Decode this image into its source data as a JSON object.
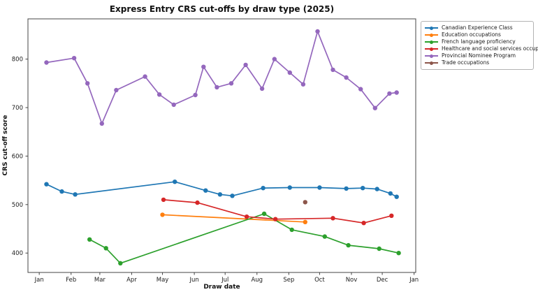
{
  "chart_data": {
    "type": "line",
    "title": "Express Entry CRS cut-offs by draw type (2025)",
    "xlabel": "Draw date",
    "ylabel": "CRS cut-off score",
    "x_tick_labels": [
      "Jan",
      "Feb",
      "Mar",
      "Apr",
      "May",
      "Jun",
      "Jul",
      "Aug",
      "Sep",
      "Oct",
      "Nov",
      "Dec",
      "Jan"
    ],
    "y_ticks": [
      400,
      500,
      600,
      700,
      800
    ],
    "ylim": [
      360,
      883
    ],
    "grid": false,
    "legend_position": "upper-right-outside",
    "frame_color": "#444444",
    "series": [
      {
        "name": "Canadian Experience Class",
        "color": "#1f77b4",
        "points": [
          [
            "2025-01-08",
            542
          ],
          [
            "2025-01-23",
            527
          ],
          [
            "2025-02-05",
            521
          ],
          [
            "2025-05-13",
            547
          ],
          [
            "2025-06-12",
            529
          ],
          [
            "2025-06-26",
            521
          ],
          [
            "2025-07-08",
            518
          ],
          [
            "2025-08-07",
            534
          ],
          [
            "2025-09-02",
            535
          ],
          [
            "2025-10-01",
            535
          ],
          [
            "2025-10-27",
            533
          ],
          [
            "2025-11-12",
            534
          ],
          [
            "2025-11-26",
            532
          ],
          [
            "2025-12-09",
            523
          ],
          [
            "2025-12-15",
            516
          ]
        ]
      },
      {
        "name": "Education occupations",
        "color": "#ff7f0e",
        "points": [
          [
            "2025-05-01",
            479
          ],
          [
            "2025-09-17",
            464
          ]
        ]
      },
      {
        "name": "French language proficiency",
        "color": "#2ca02c",
        "points": [
          [
            "2025-02-19",
            428
          ],
          [
            "2025-03-07",
            410
          ],
          [
            "2025-03-21",
            379
          ],
          [
            "2025-08-08",
            481
          ],
          [
            "2025-09-04",
            448
          ],
          [
            "2025-10-06",
            434
          ],
          [
            "2025-10-29",
            416
          ],
          [
            "2025-11-28",
            409
          ],
          [
            "2025-12-17",
            400
          ]
        ]
      },
      {
        "name": "Healthcare and social services occupations",
        "color": "#d62728",
        "points": [
          [
            "2025-05-02",
            510
          ],
          [
            "2025-06-04",
            504
          ],
          [
            "2025-07-22",
            475
          ],
          [
            "2025-08-19",
            470
          ],
          [
            "2025-10-14",
            472
          ],
          [
            "2025-11-13",
            462
          ],
          [
            "2025-12-10",
            477
          ]
        ]
      },
      {
        "name": "Provincial Nominee Program",
        "color": "#9467bd",
        "points": [
          [
            "2025-01-08",
            793
          ],
          [
            "2025-02-04",
            802
          ],
          [
            "2025-02-17",
            750
          ],
          [
            "2025-03-03",
            667
          ],
          [
            "2025-03-17",
            736
          ],
          [
            "2025-04-14",
            764
          ],
          [
            "2025-04-28",
            727
          ],
          [
            "2025-05-12",
            706
          ],
          [
            "2025-06-02",
            726
          ],
          [
            "2025-06-10",
            784
          ],
          [
            "2025-06-23",
            742
          ],
          [
            "2025-07-07",
            750
          ],
          [
            "2025-07-21",
            788
          ],
          [
            "2025-08-06",
            739
          ],
          [
            "2025-08-18",
            800
          ],
          [
            "2025-09-02",
            772
          ],
          [
            "2025-09-15",
            748
          ],
          [
            "2025-09-29",
            857
          ],
          [
            "2025-10-14",
            778
          ],
          [
            "2025-10-27",
            762
          ],
          [
            "2025-11-10",
            738
          ],
          [
            "2025-11-24",
            699
          ],
          [
            "2025-12-08",
            729
          ],
          [
            "2025-12-15",
            731
          ]
        ]
      },
      {
        "name": "Trade occupations",
        "color": "#8c564b",
        "points": [
          [
            "2025-09-17",
            505
          ]
        ]
      }
    ]
  }
}
